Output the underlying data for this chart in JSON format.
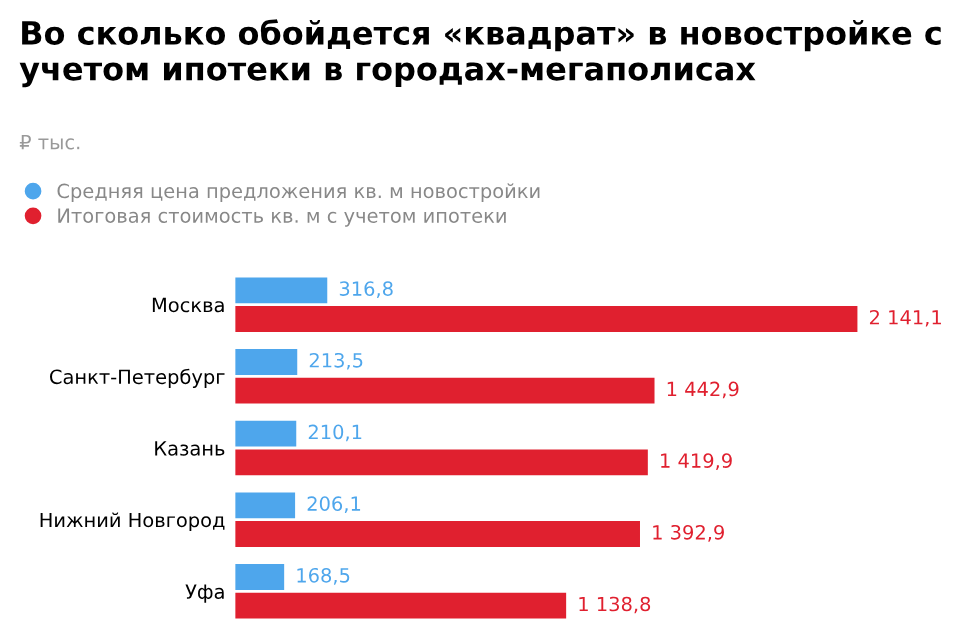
{
  "chart_data": {
    "type": "bar",
    "orientation": "horizontal",
    "title": "Во сколько обойдется «квадрат» в новостройке с учетом ипотеки в городах-мегаполисах",
    "subtitle": "₽ тыс.",
    "categories": [
      "Москва",
      "Санкт-Петербург",
      "Казань",
      "Нижний Новгород",
      "Уфа"
    ],
    "series": [
      {
        "name": "Средняя цена предложения кв. м новостройки",
        "color": "#4ea6ec",
        "values": [
          316.8,
          213.5,
          210.1,
          206.1,
          168.5
        ],
        "value_labels": [
          "316,8",
          "213,5",
          "210,1",
          "206,1",
          "168,5"
        ]
      },
      {
        "name": "Итоговая стоимость кв. м с учетом ипотеки",
        "color": "#e0202f",
        "values": [
          2141.1,
          1442.9,
          1419.9,
          1392.9,
          1138.8
        ],
        "value_labels": [
          "2 141,1",
          "1 442,9",
          "1 419,9",
          "1 392,9",
          "1 138,8"
        ]
      }
    ],
    "legend": "top left",
    "grid": false
  }
}
